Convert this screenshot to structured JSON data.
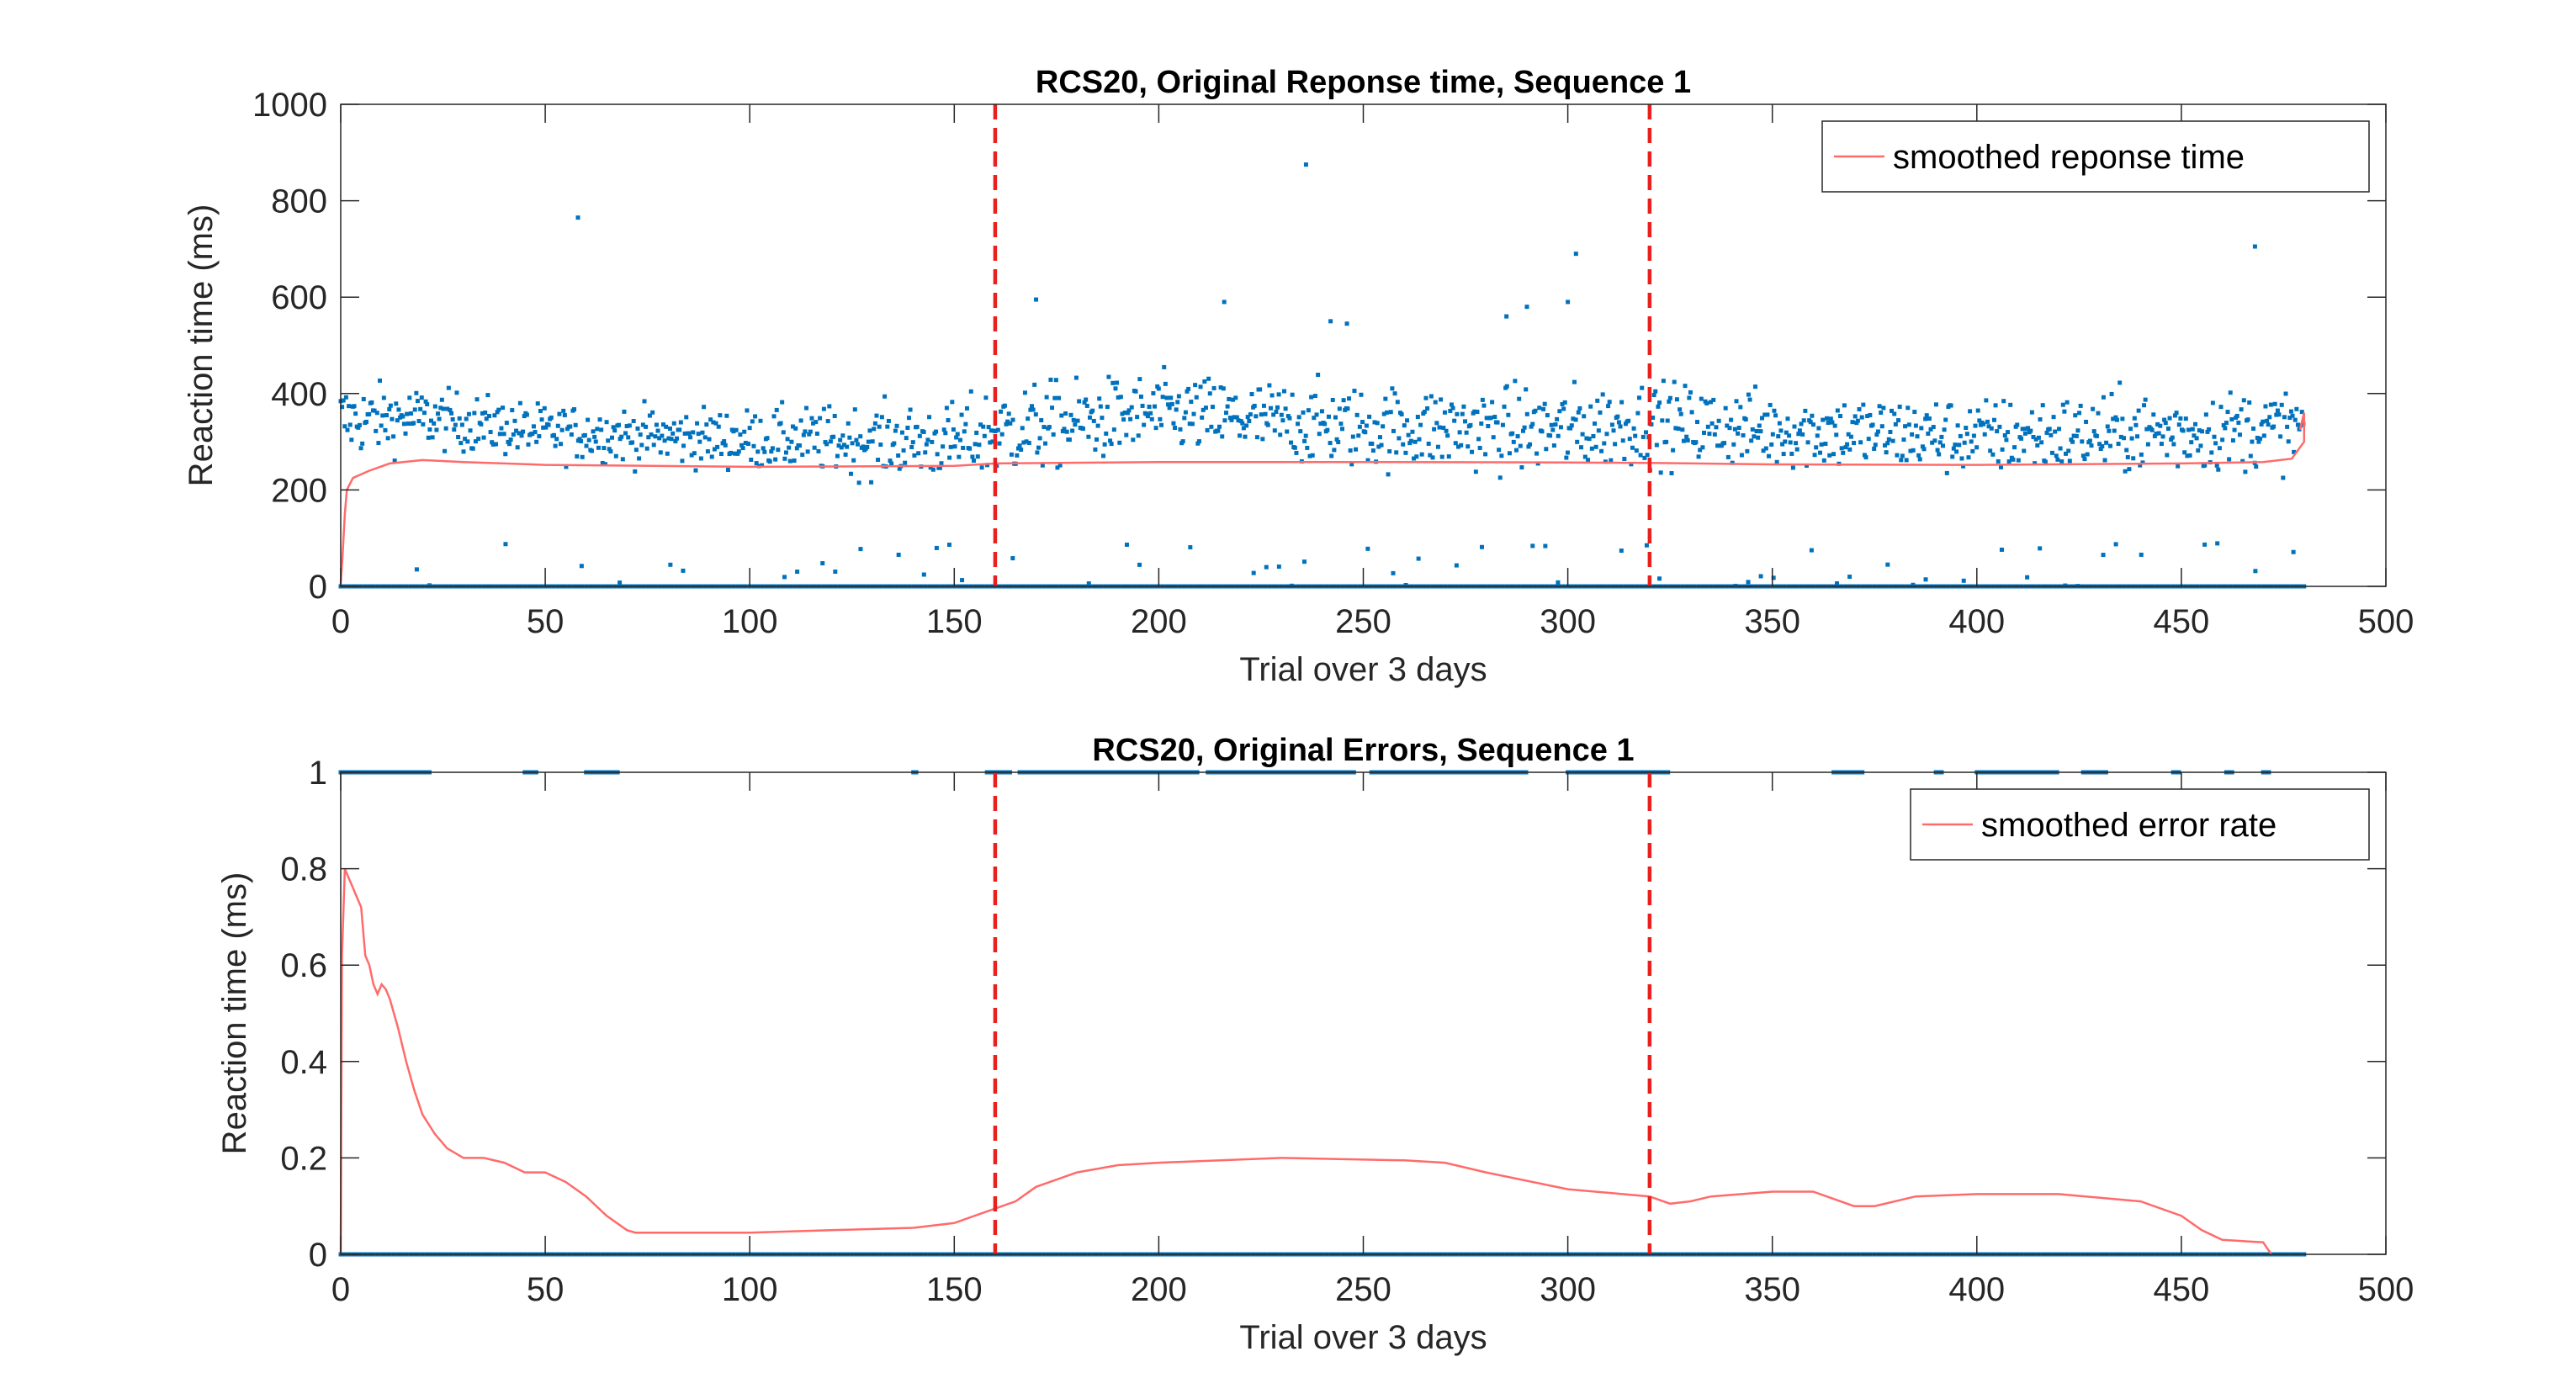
{
  "chart_data": [
    {
      "type": "scatter",
      "title": "RCS20, Original Reponse time, Sequence 1",
      "xlabel": "Trial over 3 days",
      "ylabel": "Reaction time (ms)",
      "xlim": [
        0,
        500
      ],
      "ylim": [
        0,
        1000
      ],
      "xticks": [
        0,
        50,
        100,
        150,
        200,
        250,
        300,
        350,
        400,
        450,
        500
      ],
      "yticks": [
        0,
        200,
        400,
        600,
        800,
        1000
      ],
      "grid": false,
      "legend_position": "top-right",
      "colors": {
        "points": "#0072BD",
        "smooth": "#FF6B6B",
        "vline": "#E8211F"
      },
      "vlines": [
        160,
        320
      ],
      "series": [
        {
          "name": "",
          "kind": "points",
          "note": "About 3 responses per trial; most between 220 and 470 ms, many zero values on the baseline, occasional outliers (~760 ms near trial 58, ~875 ms near trial 236, ~690 ms near trial 302, ~705 ms near trial 468).",
          "x_range": [
            0,
            480
          ],
          "band": [
            {
              "x": 0,
              "center": 345,
              "spread": 70
            },
            {
              "x": 20,
              "center": 350,
              "spread": 55
            },
            {
              "x": 50,
              "center": 320,
              "spread": 50
            },
            {
              "x": 100,
              "center": 305,
              "spread": 55
            },
            {
              "x": 150,
              "center": 300,
              "spread": 70
            },
            {
              "x": 160,
              "center": 320,
              "spread": 85
            },
            {
              "x": 200,
              "center": 360,
              "spread": 70
            },
            {
              "x": 250,
              "center": 330,
              "spread": 75
            },
            {
              "x": 300,
              "center": 325,
              "spread": 80
            },
            {
              "x": 320,
              "center": 340,
              "spread": 75
            },
            {
              "x": 350,
              "center": 325,
              "spread": 70
            },
            {
              "x": 400,
              "center": 310,
              "spread": 70
            },
            {
              "x": 450,
              "center": 320,
              "spread": 75
            },
            {
              "x": 480,
              "center": 330,
              "spread": 70
            }
          ],
          "outliers": [
            [
              58,
              765
            ],
            [
              236,
              875
            ],
            [
              302,
              690
            ],
            [
              468,
              705
            ],
            [
              170,
              595
            ],
            [
              216,
              590
            ],
            [
              242,
              550
            ],
            [
              285,
              560
            ],
            [
              300,
              590
            ],
            [
              290,
              580
            ],
            [
              246,
              545
            ]
          ]
        },
        {
          "name": "smoothed reponse time",
          "kind": "line",
          "points": [
            [
              0,
              5
            ],
            [
              0.4,
              55
            ],
            [
              1,
              150
            ],
            [
              1.5,
              200
            ],
            [
              3,
              225
            ],
            [
              7,
              240
            ],
            [
              12,
              255
            ],
            [
              20,
              262
            ],
            [
              30,
              258
            ],
            [
              50,
              252
            ],
            [
              100,
              248
            ],
            [
              150,
              250
            ],
            [
              160,
              255
            ],
            [
              200,
              258
            ],
            [
              250,
              258
            ],
            [
              300,
              257
            ],
            [
              320,
              256
            ],
            [
              350,
              253
            ],
            [
              400,
              252
            ],
            [
              450,
              255
            ],
            [
              470,
              258
            ],
            [
              477,
              265
            ],
            [
              480,
              300
            ],
            [
              480,
              360
            ],
            [
              479,
              325
            ]
          ]
        }
      ]
    },
    {
      "type": "scatter",
      "title": "RCS20, Original Errors, Sequence 1",
      "xlabel": "Trial over 3 days",
      "ylabel": "Reaction time (ms)",
      "xlim": [
        0,
        500
      ],
      "ylim": [
        0,
        1
      ],
      "xticks": [
        0,
        50,
        100,
        150,
        200,
        250,
        300,
        350,
        400,
        450,
        500
      ],
      "yticks": [
        0,
        0.2,
        0.4,
        0.6,
        0.8,
        1
      ],
      "ytick_labels": [
        "0",
        "0.2",
        "0.4",
        "0.6",
        "0.8",
        "1"
      ],
      "grid": false,
      "legend_position": "top-right",
      "colors": {
        "points": "#0072BD",
        "smooth": "#FF6B6B",
        "vline": "#E8211F"
      },
      "vlines": [
        160,
        320
      ],
      "series": [
        {
          "name": "",
          "kind": "points",
          "note": "Binary errors per response: most at 0 across trials 0-480; the value-1 points lie in the listed trial ranges.",
          "zero_range": [
            0,
            480
          ],
          "one_ranges": [
            [
              0,
              22
            ],
            [
              45,
              48
            ],
            [
              60,
              68
            ],
            [
              140,
              141
            ],
            [
              158,
              164
            ],
            [
              166,
              210
            ],
            [
              212,
              248
            ],
            [
              252,
              290
            ],
            [
              300,
              325
            ],
            [
              365,
              372
            ],
            [
              390,
              392
            ],
            [
              400,
              420
            ],
            [
              426,
              432
            ],
            [
              448,
              450
            ],
            [
              461,
              463
            ],
            [
              470,
              472
            ]
          ]
        },
        {
          "name": "smoothed error rate",
          "kind": "line",
          "points": [
            [
              0,
              0
            ],
            [
              0.3,
              0.62
            ],
            [
              1,
              0.8
            ],
            [
              2,
              0.78
            ],
            [
              3,
              0.76
            ],
            [
              4,
              0.74
            ],
            [
              5,
              0.72
            ],
            [
              6,
              0.62
            ],
            [
              7,
              0.6
            ],
            [
              8,
              0.56
            ],
            [
              9,
              0.54
            ],
            [
              10,
              0.56
            ],
            [
              11,
              0.55
            ],
            [
              12,
              0.53
            ],
            [
              14,
              0.47
            ],
            [
              16,
              0.4
            ],
            [
              18,
              0.34
            ],
            [
              20,
              0.29
            ],
            [
              23,
              0.25
            ],
            [
              26,
              0.22
            ],
            [
              30,
              0.2
            ],
            [
              35,
              0.2
            ],
            [
              40,
              0.19
            ],
            [
              45,
              0.17
            ],
            [
              50,
              0.17
            ],
            [
              55,
              0.15
            ],
            [
              60,
              0.12
            ],
            [
              65,
              0.08
            ],
            [
              70,
              0.05
            ],
            [
              72,
              0.045
            ],
            [
              80,
              0.045
            ],
            [
              100,
              0.045
            ],
            [
              120,
              0.05
            ],
            [
              140,
              0.055
            ],
            [
              150,
              0.065
            ],
            [
              160,
              0.095
            ],
            [
              165,
              0.11
            ],
            [
              170,
              0.14
            ],
            [
              180,
              0.17
            ],
            [
              190,
              0.185
            ],
            [
              200,
              0.19
            ],
            [
              230,
              0.2
            ],
            [
              260,
              0.195
            ],
            [
              270,
              0.19
            ],
            [
              280,
              0.17
            ],
            [
              300,
              0.135
            ],
            [
              320,
              0.12
            ],
            [
              325,
              0.105
            ],
            [
              330,
              0.11
            ],
            [
              335,
              0.12
            ],
            [
              350,
              0.13
            ],
            [
              360,
              0.13
            ],
            [
              370,
              0.1
            ],
            [
              375,
              0.1
            ],
            [
              385,
              0.12
            ],
            [
              400,
              0.125
            ],
            [
              420,
              0.125
            ],
            [
              440,
              0.11
            ],
            [
              450,
              0.08
            ],
            [
              455,
              0.05
            ],
            [
              460,
              0.03
            ],
            [
              470,
              0.025
            ],
            [
              472,
              0.0
            ]
          ]
        }
      ]
    }
  ]
}
